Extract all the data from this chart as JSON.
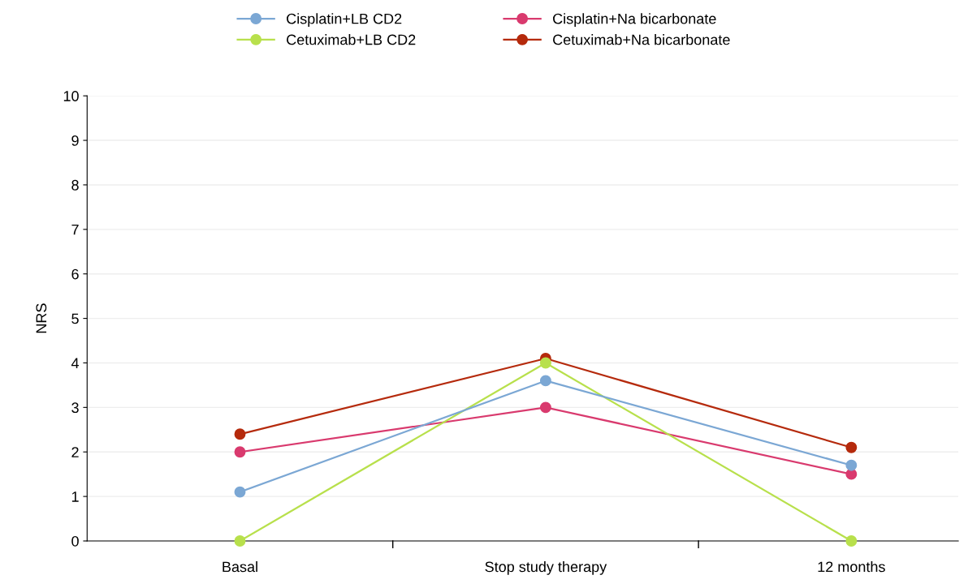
{
  "chart_data": {
    "type": "line",
    "ylabel": "NRS",
    "categories": [
      "Basal",
      "Stop study therapy",
      "12 months"
    ],
    "series": [
      {
        "name": "Cisplatin+LB CD2",
        "color": "#7ba7d4",
        "values": [
          1.1,
          3.6,
          1.7
        ]
      },
      {
        "name": "Cetuximab+LB CD2",
        "color": "#b8e04c",
        "values": [
          0,
          4.0,
          0
        ]
      },
      {
        "name": "Cisplatin+Na bicarbonate",
        "color": "#d93a6e",
        "values": [
          2.0,
          3.0,
          1.5
        ]
      },
      {
        "name": "Cetuximab+Na bicarbonate",
        "color": "#b52a0c",
        "values": [
          2.4,
          4.1,
          2.1
        ]
      }
    ],
    "ylim": [
      0,
      10
    ],
    "yticks": [
      0,
      1,
      2,
      3,
      4,
      5,
      6,
      7,
      8,
      9,
      10
    ],
    "grid": "y",
    "legend": "top",
    "marker": "circle",
    "line_style": "solid"
  }
}
